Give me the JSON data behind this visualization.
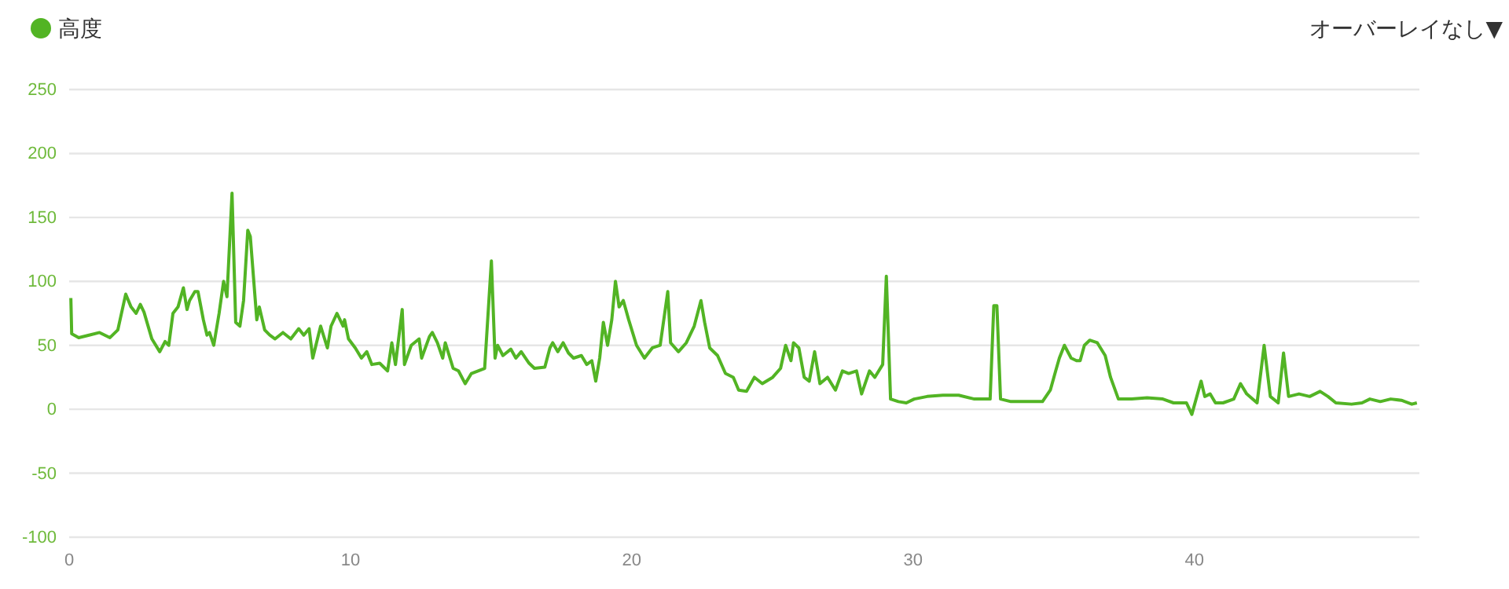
{
  "chart_data": {
    "type": "line",
    "legend": "top left",
    "grid": "y",
    "marker": "none",
    "line_style": "solid",
    "annotations": [
      "オーバーレイなし▼"
    ],
    "xlim": [
      0,
      48
    ],
    "xticks": [
      0,
      10,
      20,
      30,
      40
    ],
    "ylim": [
      -100,
      250
    ],
    "yticks": [
      -100,
      -50,
      0,
      50,
      100,
      150,
      200,
      250
    ],
    "x": [
      0.06,
      0.09,
      0.34,
      0.71,
      1.08,
      1.45,
      1.73,
      2.01,
      2.2,
      2.38,
      2.53,
      2.66,
      2.94,
      3.22,
      3.41,
      3.54,
      3.69,
      3.87,
      4.06,
      4.19,
      4.28,
      4.47,
      4.58,
      4.77,
      4.9,
      4.99,
      5.14,
      5.33,
      5.49,
      5.61,
      5.79,
      5.92,
      6.07,
      6.2,
      6.35,
      6.44,
      6.67,
      6.76,
      6.95,
      7.13,
      7.32,
      7.6,
      7.88,
      8.16,
      8.34,
      8.53,
      8.66,
      8.86,
      8.94,
      9.18,
      9.31,
      9.52,
      9.74,
      9.79,
      9.93,
      10.17,
      10.39,
      10.58,
      10.76,
      11.04,
      11.32,
      11.47,
      11.6,
      11.84,
      11.92,
      12.16,
      12.44,
      12.53,
      12.81,
      12.91,
      13.09,
      13.28,
      13.37,
      13.65,
      13.84,
      14.08,
      14.3,
      14.77,
      15.01,
      15.14,
      15.23,
      15.42,
      15.7,
      15.88,
      16.07,
      16.35,
      16.54,
      16.91,
      17.09,
      17.19,
      17.37,
      17.56,
      17.75,
      17.93,
      18.21,
      18.4,
      18.58,
      18.72,
      18.86,
      18.99,
      19.14,
      19.29,
      19.42,
      19.55,
      19.7,
      19.89,
      20.17,
      20.45,
      20.73,
      21.01,
      21.28,
      21.38,
      21.66,
      21.94,
      22.22,
      22.46,
      22.59,
      22.77,
      23.05,
      23.33,
      23.61,
      23.8,
      24.08,
      24.36,
      24.64,
      25.01,
      25.29,
      25.47,
      25.66,
      25.75,
      25.94,
      26.13,
      26.31,
      26.5,
      26.69,
      26.96,
      27.24,
      27.49,
      27.71,
      27.99,
      28.17,
      28.45,
      28.64,
      28.92,
      29.05,
      29.2,
      29.48,
      29.76,
      30.04,
      30.5,
      31.06,
      31.62,
      32.18,
      32.64,
      32.74,
      32.87,
      32.98,
      33.11,
      33.48,
      34.04,
      34.6,
      34.88,
      35.07,
      35.2,
      35.38,
      35.62,
      35.81,
      35.94,
      36.09,
      36.28,
      36.55,
      36.83,
      37.02,
      37.3,
      37.77,
      38.32,
      38.88,
      39.26,
      39.72,
      39.91,
      40.15,
      40.24,
      40.37,
      40.56,
      40.75,
      41.02,
      41.4,
      41.64,
      41.86,
      42.23,
      42.48,
      42.7,
      42.98,
      43.17,
      43.35,
      43.72,
      44.1,
      44.47,
      44.75,
      45.03,
      45.59,
      45.96,
      46.24,
      46.61,
      46.98,
      47.36,
      47.73,
      47.91
    ],
    "series": [
      {
        "name": "高度",
        "color": "#52b424",
        "values": [
          87,
          59,
          56,
          58,
          60,
          56,
          62,
          90,
          80,
          75,
          82,
          76,
          55,
          45,
          53,
          50,
          75,
          80,
          95,
          78,
          85,
          92,
          92,
          70,
          58,
          60,
          50,
          75,
          100,
          88,
          169,
          68,
          65,
          85,
          140,
          135,
          70,
          80,
          62,
          58,
          55,
          60,
          55,
          63,
          58,
          63,
          40,
          58,
          65,
          48,
          65,
          75,
          65,
          70,
          55,
          48,
          40,
          45,
          35,
          36,
          30,
          52,
          35,
          78,
          35,
          50,
          55,
          40,
          57,
          60,
          52,
          40,
          52,
          32,
          30,
          20,
          28,
          32,
          116,
          40,
          50,
          42,
          47,
          40,
          45,
          36,
          32,
          33,
          48,
          52,
          45,
          52,
          44,
          40,
          42,
          35,
          38,
          22,
          40,
          68,
          50,
          70,
          100,
          80,
          85,
          70,
          50,
          40,
          48,
          50,
          92,
          52,
          45,
          52,
          65,
          85,
          68,
          48,
          42,
          28,
          25,
          15,
          14,
          25,
          20,
          25,
          32,
          50,
          38,
          52,
          48,
          25,
          22,
          45,
          20,
          25,
          15,
          30,
          28,
          30,
          12,
          30,
          25,
          35,
          104,
          8,
          6,
          5,
          8,
          10,
          11,
          11,
          8,
          8,
          8,
          81,
          81,
          8,
          6,
          6,
          6,
          15,
          30,
          40,
          50,
          40,
          38,
          38,
          50,
          54,
          52,
          42,
          25,
          8,
          8,
          9,
          8,
          5,
          5,
          -4,
          15,
          22,
          10,
          12,
          5,
          5,
          8,
          20,
          12,
          5,
          50,
          10,
          5,
          44,
          10,
          12,
          10,
          14,
          10,
          5,
          4,
          5,
          8,
          6,
          8,
          7,
          4,
          5
        ]
      }
    ]
  }
}
